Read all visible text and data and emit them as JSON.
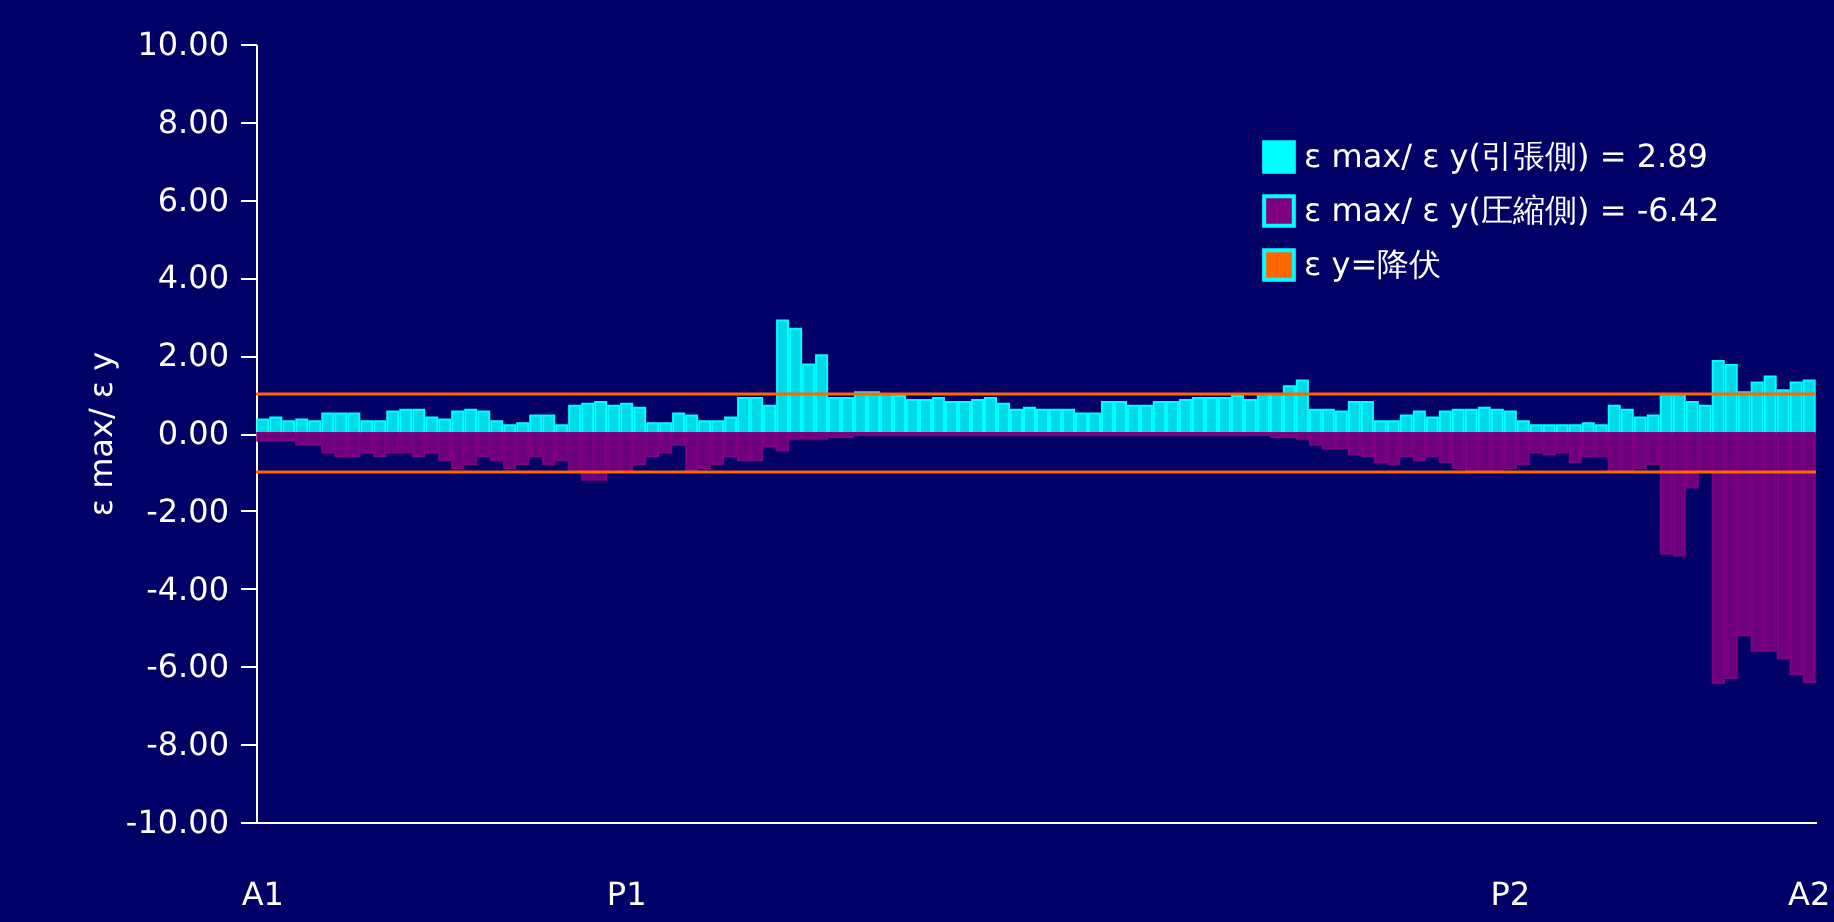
{
  "chart_data": {
    "type": "bar",
    "ylabel": "ε max/ ε y",
    "categories": [
      "A1",
      null,
      null,
      null,
      null,
      null,
      null,
      null,
      null,
      null,
      null,
      null,
      null,
      null,
      null,
      null,
      null,
      null,
      null,
      null,
      null,
      null,
      null,
      null,
      null,
      null,
      null,
      null,
      "P1",
      null,
      null,
      null,
      null,
      null,
      null,
      null,
      null,
      null,
      null,
      null,
      null,
      null,
      null,
      null,
      null,
      null,
      null,
      null,
      null,
      null,
      null,
      null,
      null,
      null,
      null,
      null,
      null,
      null,
      null,
      null,
      null,
      null,
      null,
      null,
      null,
      null,
      null,
      null,
      null,
      null,
      null,
      null,
      null,
      null,
      null,
      null,
      null,
      null,
      null,
      null,
      null,
      null,
      null,
      null,
      null,
      null,
      null,
      null,
      null,
      null,
      null,
      null,
      null,
      null,
      null,
      null,
      "P2",
      null,
      null,
      null,
      null,
      null,
      null,
      null,
      null,
      null,
      null,
      null,
      null,
      null,
      null,
      null,
      null,
      null,
      null,
      null,
      null,
      null,
      null,
      "A2"
    ],
    "series": [
      {
        "name": "ε max/ ε y(引張側) = 2.89",
        "color": "#00ffff",
        "values": [
          0.35,
          0.4,
          0.3,
          0.35,
          0.3,
          0.5,
          0.5,
          0.5,
          0.3,
          0.3,
          0.55,
          0.6,
          0.6,
          0.4,
          0.35,
          0.55,
          0.6,
          0.55,
          0.3,
          0.2,
          0.25,
          0.45,
          0.45,
          0.2,
          0.7,
          0.75,
          0.8,
          0.7,
          0.75,
          0.65,
          0.25,
          0.25,
          0.5,
          0.45,
          0.3,
          0.3,
          0.4,
          0.9,
          0.9,
          0.7,
          2.89,
          2.68,
          1.76,
          2.0,
          0.9,
          0.9,
          1.05,
          1.05,
          1.0,
          0.95,
          0.85,
          0.85,
          0.9,
          0.8,
          0.8,
          0.85,
          0.9,
          0.75,
          0.6,
          0.65,
          0.6,
          0.6,
          0.6,
          0.5,
          0.5,
          0.8,
          0.8,
          0.7,
          0.7,
          0.8,
          0.8,
          0.85,
          0.9,
          0.9,
          0.9,
          0.95,
          0.85,
          1.0,
          1.0,
          1.2,
          1.35,
          0.6,
          0.6,
          0.55,
          0.8,
          0.8,
          0.3,
          0.3,
          0.45,
          0.55,
          0.4,
          0.55,
          0.6,
          0.6,
          0.65,
          0.6,
          0.55,
          0.3,
          0.2,
          0.2,
          0.2,
          0.2,
          0.25,
          0.2,
          0.7,
          0.6,
          0.4,
          0.45,
          1.0,
          1.0,
          0.8,
          0.7,
          1.85,
          1.75,
          1.05,
          1.3,
          1.45,
          1.1,
          1.3,
          1.35
        ]
      },
      {
        "name": "ε max/ ε y(圧縮側) = -6.42",
        "color": "#800080",
        "values": [
          -0.2,
          -0.2,
          -0.2,
          -0.3,
          -0.3,
          -0.5,
          -0.6,
          -0.6,
          -0.5,
          -0.6,
          -0.5,
          -0.5,
          -0.6,
          -0.5,
          -0.7,
          -0.9,
          -0.8,
          -0.6,
          -0.7,
          -0.9,
          -0.8,
          -0.6,
          -0.8,
          -0.7,
          -1.0,
          -1.2,
          -1.2,
          -1.0,
          -1.0,
          -0.8,
          -0.6,
          -0.5,
          -0.3,
          -0.95,
          -0.9,
          -0.8,
          -0.6,
          -0.7,
          -0.7,
          -0.35,
          -0.45,
          -0.15,
          -0.15,
          -0.15,
          -0.1,
          -0.1,
          -0.05,
          -0.05,
          -0.05,
          -0.05,
          -0.05,
          -0.05,
          -0.05,
          -0.05,
          -0.05,
          -0.05,
          -0.05,
          -0.05,
          -0.05,
          -0.05,
          -0.05,
          -0.05,
          -0.05,
          -0.05,
          -0.05,
          -0.05,
          -0.05,
          -0.05,
          -0.05,
          -0.05,
          -0.05,
          -0.05,
          -0.05,
          -0.05,
          -0.05,
          -0.05,
          -0.05,
          -0.05,
          -0.1,
          -0.1,
          -0.15,
          -0.3,
          -0.4,
          -0.4,
          -0.55,
          -0.6,
          -0.75,
          -0.8,
          -0.6,
          -0.7,
          -0.6,
          -0.75,
          -0.9,
          -1.0,
          -1.0,
          -1.0,
          -0.9,
          -0.8,
          -0.5,
          -0.55,
          -0.5,
          -0.75,
          -0.6,
          -0.6,
          -1.0,
          -1.0,
          -0.9,
          -0.8,
          -3.1,
          -3.15,
          -1.4,
          -1.0,
          -6.42,
          -6.3,
          -5.2,
          -5.6,
          -5.6,
          -5.8,
          -6.2,
          -6.4
        ]
      }
    ],
    "ylim": [
      -10,
      10
    ],
    "yticks": [
      {
        "value": -10,
        "label": "-10.00"
      },
      {
        "value": -8,
        "label": "-8.00"
      },
      {
        "value": -6,
        "label": "-6.00"
      },
      {
        "value": -4,
        "label": "-4.00"
      },
      {
        "value": -2,
        "label": "-2.00"
      },
      {
        "value": 0,
        "label": "0.00"
      },
      {
        "value": 2,
        "label": "2.00"
      },
      {
        "value": 4,
        "label": "4.00"
      },
      {
        "value": 6,
        "label": "6.00"
      },
      {
        "value": 8,
        "label": "8.00"
      },
      {
        "value": 10,
        "label": "10.00"
      }
    ],
    "ref_lines": [
      {
        "axis": "y",
        "value": 1,
        "label": "ε y=降伏",
        "color": "#ff6600"
      },
      {
        "axis": "y",
        "value": -1,
        "color": "#ff6600"
      }
    ],
    "legend": "top right",
    "grid": false
  }
}
